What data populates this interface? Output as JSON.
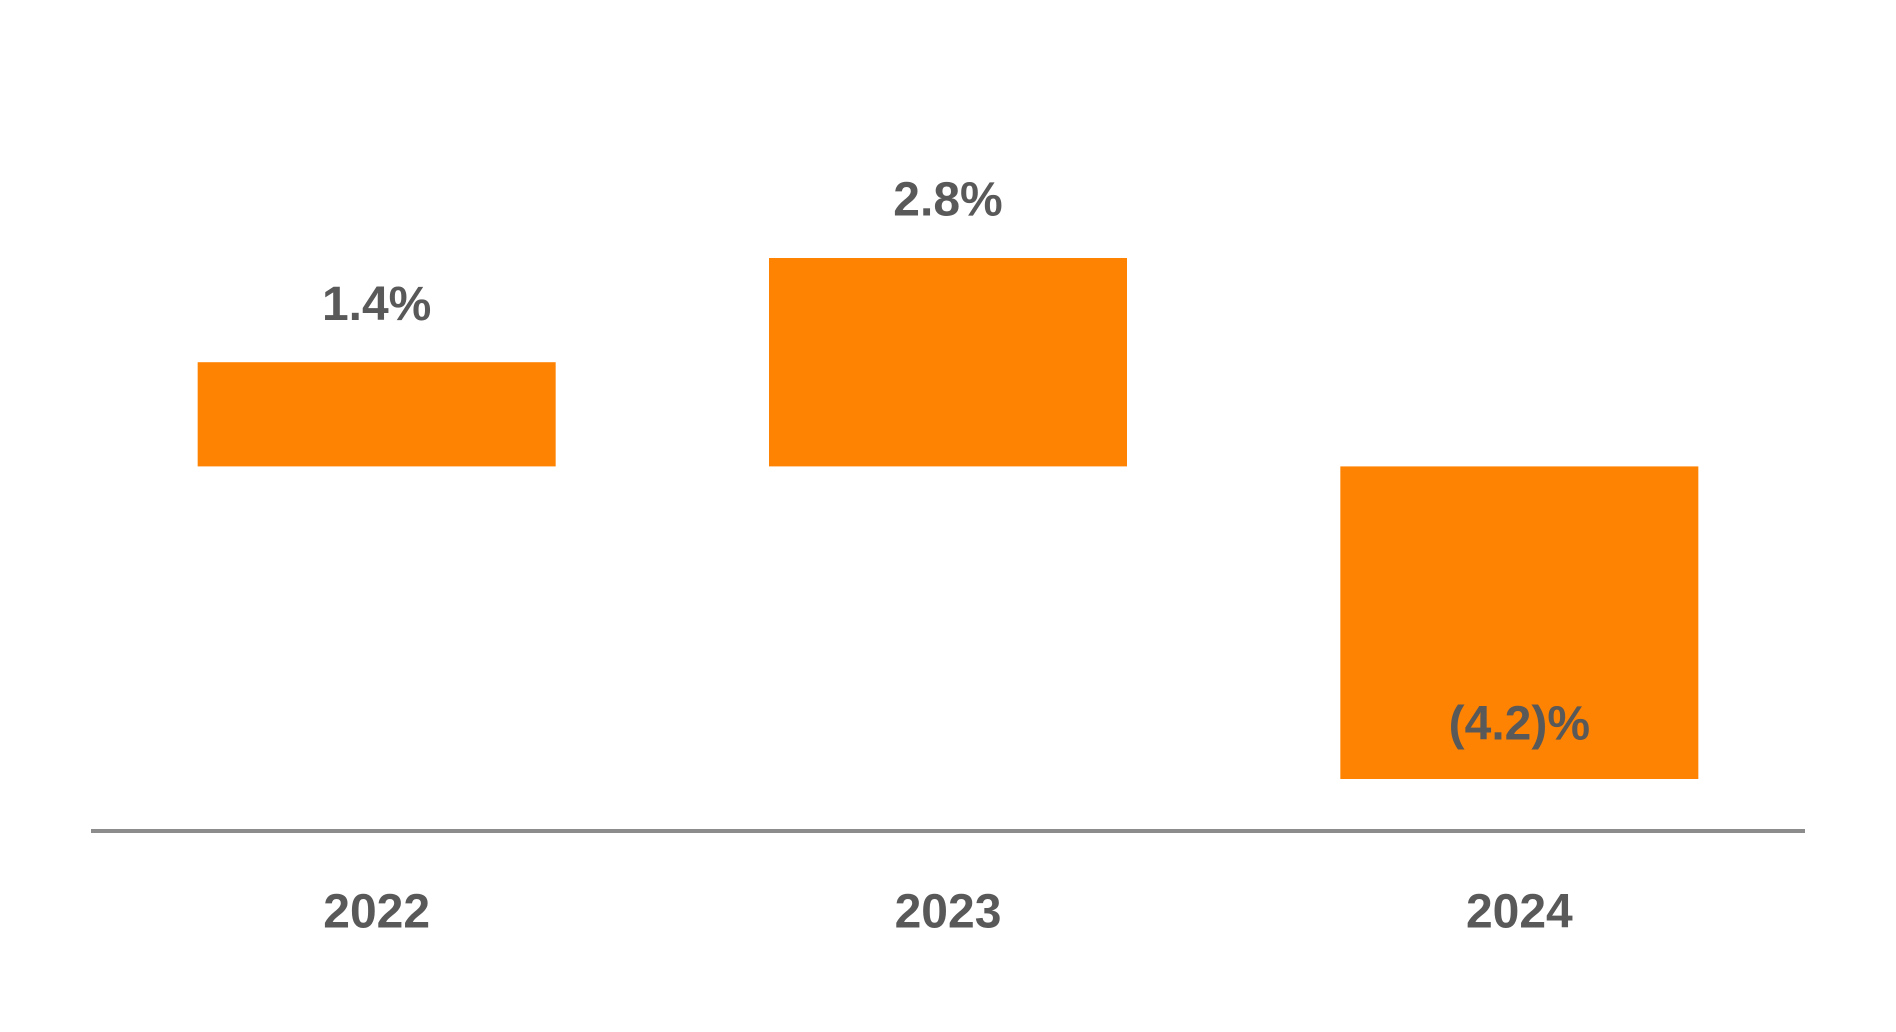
{
  "chart_data": {
    "type": "bar",
    "categories": [
      "2022",
      "2023",
      "2024"
    ],
    "values": [
      1.4,
      2.8,
      -4.2
    ],
    "value_labels": [
      "1.4%",
      "2.8%",
      "(4.2)%"
    ],
    "color": "#ff8302"
  }
}
